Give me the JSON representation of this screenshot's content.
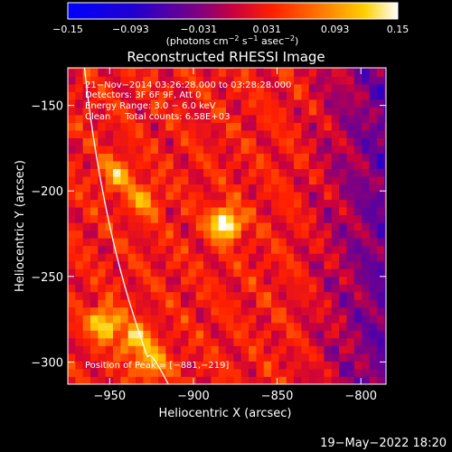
{
  "chart_data": {
    "type": "heatmap",
    "title": "Reconstructed RHESSI Image",
    "xlabel": "Heliocentric X (arcsec)",
    "ylabel": "Heliocentric Y (arcsec)",
    "xlim": [
      -975,
      -785
    ],
    "ylim": [
      -313,
      -128
    ],
    "xticks": [
      -950,
      -900,
      -850,
      -800
    ],
    "xtick_labels": [
      "−950",
      "−900",
      "−850",
      "−800"
    ],
    "yticks": [
      -150,
      -200,
      -250,
      -300
    ],
    "ytick_labels": [
      "−150",
      "−200",
      "−250",
      "−300"
    ],
    "colorbar": {
      "min": -0.15,
      "max": 0.15,
      "ticks": [
        -0.15,
        -0.093,
        -0.031,
        0.031,
        0.093,
        0.15
      ],
      "tick_labels": [
        "−0.15",
        "−0.093",
        "−0.031",
        "0.031",
        "0.093",
        "0.15"
      ],
      "unit_prefix": "(photons cm",
      "unit_exp1": "−2",
      "unit_mid": " s",
      "unit_exp2": "−1",
      "unit_mid2": " asec",
      "unit_exp3": "−2",
      "unit_suffix": ")"
    },
    "info_lines": [
      "21−Nov−2014 03:26:28.000 to 03:28:28.000",
      "Detectors: 3F 6F 9F, Att 0",
      "Energy Range: 3.0 − 6.0 keV",
      "Clean     Total counts: 6.58E+03"
    ],
    "peak_label": "Position of Peak = [−881,−219]",
    "peak_position": [
      -881,
      -219
    ],
    "bright_sources": [
      {
        "x": -881,
        "y": -219,
        "intensity": 0.15
      },
      {
        "x": -953,
        "y": -277,
        "intensity": 0.12
      },
      {
        "x": -935,
        "y": -287,
        "intensity": 0.1
      },
      {
        "x": -925,
        "y": -301,
        "intensity": 0.09
      },
      {
        "x": -946,
        "y": -190,
        "intensity": 0.08
      },
      {
        "x": -930,
        "y": -205,
        "intensity": 0.07
      }
    ],
    "limb_curve": [
      [
        -965,
        -128
      ],
      [
        -960,
        -175
      ],
      [
        -950,
        -230
      ],
      [
        -935,
        -275
      ],
      [
        -915,
        -313
      ]
    ],
    "grid": false
  },
  "footer": {
    "date": "19−May−2022 18:20"
  }
}
